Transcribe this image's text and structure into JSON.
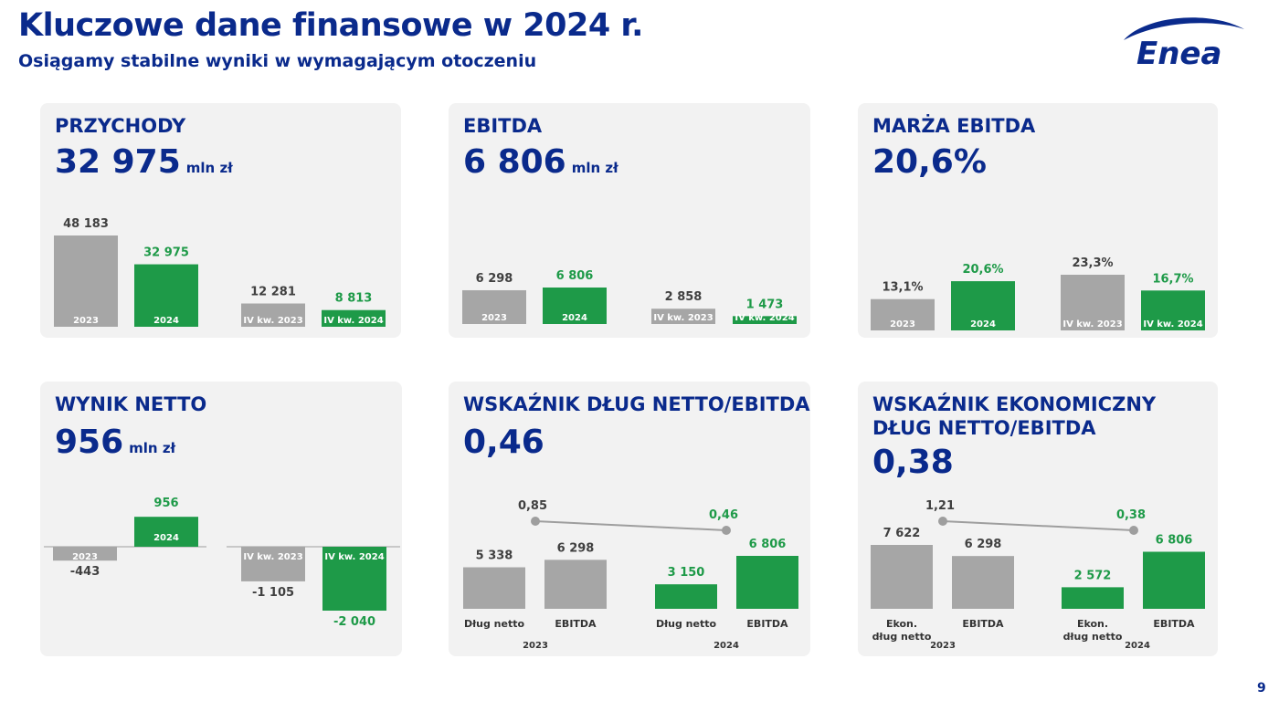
{
  "header": {
    "title": "Kluczowe dane finansowe w 2024 r.",
    "subtitle": "Osiągamy stabilne wyniki w wymagającym otoczeniu",
    "logo_text": "Enea"
  },
  "page_number": "9",
  "colors": {
    "brand": "#0a2a8c",
    "green": "#1e9a48",
    "gray": "#a6a6a6",
    "panel": "#f2f2f2",
    "label": "#404040",
    "line": "#9e9e9e"
  },
  "panels": [
    {
      "title": "PRZYCHODY",
      "value": "32 975",
      "unit": "mln zł"
    },
    {
      "title": "EBITDA",
      "value": "6 806",
      "unit": "mln zł"
    },
    {
      "title": "MARŻA EBITDA",
      "value": "20,6%"
    },
    {
      "title": "WYNIK NETTO",
      "value": "956",
      "unit": "mln zł"
    },
    {
      "title": "WSKAŹNIK DŁUG NETTO/EBITDA",
      "value": "0,46"
    },
    {
      "title": "WSKAŹNIK EKONOMICZNY DŁUG NETTO/EBITDA",
      "value": "0,38"
    }
  ],
  "chart_data": [
    {
      "type": "bar",
      "title": "PRZYCHODY",
      "categories": [
        "2023",
        "2024",
        "IV kw. 2023",
        "IV kw. 2024"
      ],
      "values": [
        48183,
        32975,
        12281,
        8813
      ],
      "labels": [
        "48 183",
        "32 975",
        "12 281",
        "8 813"
      ],
      "colors": [
        "gray",
        "green",
        "gray",
        "green"
      ]
    },
    {
      "type": "bar",
      "title": "EBITDA",
      "categories": [
        "2023",
        "2024",
        "IV kw. 2023",
        "IV kw. 2024"
      ],
      "values": [
        6298,
        6806,
        2858,
        1473
      ],
      "labels": [
        "6 298",
        "6 806",
        "2 858",
        "1 473"
      ],
      "colors": [
        "gray",
        "green",
        "gray",
        "green"
      ]
    },
    {
      "type": "bar",
      "title": "MARŻA EBITDA",
      "categories": [
        "2023",
        "2024",
        "IV kw. 2023",
        "IV kw. 2024"
      ],
      "values": [
        13.1,
        20.6,
        23.3,
        16.7
      ],
      "labels": [
        "13,1%",
        "20,6%",
        "23,3%",
        "16,7%"
      ],
      "colors": [
        "gray",
        "green",
        "gray",
        "green"
      ]
    },
    {
      "type": "bar",
      "title": "WYNIK NETTO",
      "categories": [
        "2023",
        "2024",
        "IV kw. 2023",
        "IV kw. 2024"
      ],
      "values": [
        -443,
        956,
        -1105,
        -2040
      ],
      "labels": [
        "-443",
        "956",
        "-1 105",
        "-2 040"
      ],
      "colors": [
        "gray",
        "green",
        "gray",
        "green"
      ]
    },
    {
      "type": "bar",
      "title": "WSKAŹNIK DŁUG NETTO/EBITDA",
      "categories": [
        "Dług netto",
        "EBITDA",
        "Dług netto",
        "EBITDA"
      ],
      "groups": [
        "2023",
        "2024"
      ],
      "values": [
        5338,
        6298,
        3150,
        6806
      ],
      "labels": [
        "5 338",
        "6 298",
        "3 150",
        "6 806"
      ],
      "colors": [
        "gray",
        "gray",
        "green",
        "green"
      ],
      "ratio_line": {
        "values": [
          0.85,
          0.46
        ],
        "labels": [
          "0,85",
          "0,46"
        ]
      }
    },
    {
      "type": "bar",
      "title": "WSKAŹNIK EKONOMICZNY DŁUG NETTO/EBITDA",
      "categories": [
        "Ekon.\ndług netto",
        "EBITDA",
        "Ekon.\ndług netto",
        "EBITDA"
      ],
      "groups": [
        "2023",
        "2024"
      ],
      "values": [
        7622,
        6298,
        2572,
        6806
      ],
      "labels": [
        "7 622",
        "6 298",
        "2 572",
        "6 806"
      ],
      "colors": [
        "gray",
        "gray",
        "green",
        "green"
      ],
      "ratio_line": {
        "values": [
          1.21,
          0.38
        ],
        "labels": [
          "1,21",
          "0,38"
        ]
      }
    }
  ]
}
